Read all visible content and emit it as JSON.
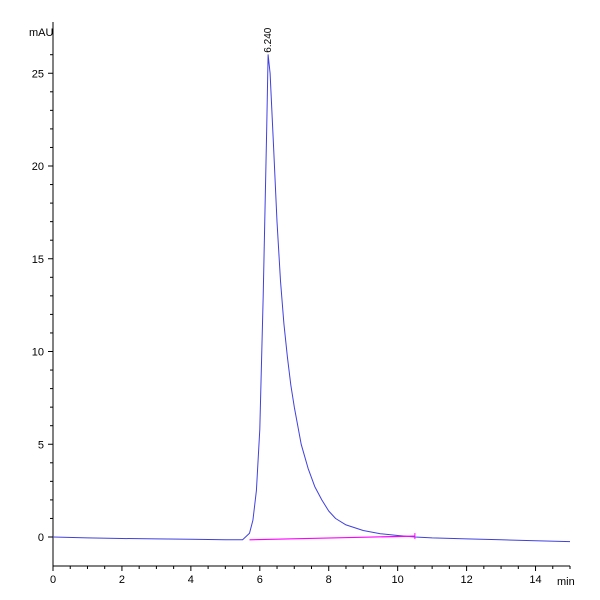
{
  "chart_data": {
    "type": "line",
    "title": "",
    "xlabel": "min",
    "ylabel": "mAU",
    "xlim": [
      0,
      15
    ],
    "ylim": [
      0,
      27
    ],
    "grid": false,
    "x_ticks": [
      "0",
      "2",
      "4",
      "6",
      "8",
      "10",
      "12",
      "14"
    ],
    "y_ticks": [
      "0",
      "5",
      "10",
      "15",
      "20",
      "25"
    ],
    "peak_label": "6.240",
    "colors": {
      "trace": "#4040e0",
      "baseline": "#ff00ff",
      "axis": "#000000"
    },
    "series": [
      {
        "role": "trace",
        "x": [
          0,
          1,
          2,
          3,
          4,
          5,
          5.5,
          5.7,
          5.8,
          5.9,
          6.0,
          6.1,
          6.2,
          6.24,
          6.3,
          6.4,
          6.5,
          6.6,
          6.7,
          6.8,
          6.9,
          7.0,
          7.2,
          7.4,
          7.6,
          7.8,
          8.0,
          8.2,
          8.5,
          9.0,
          9.5,
          10.0,
          10.5,
          11,
          12,
          13,
          14,
          15
        ],
        "y": [
          0.0,
          -0.05,
          -0.08,
          -0.1,
          -0.12,
          -0.15,
          -0.15,
          0.2,
          0.9,
          2.5,
          5.8,
          13.0,
          22.0,
          26.0,
          25.0,
          21.0,
          17.0,
          13.8,
          11.5,
          9.7,
          8.2,
          7.0,
          5.0,
          3.7,
          2.7,
          2.0,
          1.4,
          1.0,
          0.65,
          0.35,
          0.18,
          0.08,
          0.0,
          -0.05,
          -0.1,
          -0.15,
          -0.2,
          -0.25
        ]
      },
      {
        "role": "baseline",
        "x": [
          5.7,
          10.5
        ],
        "y": [
          -0.15,
          0.05
        ]
      }
    ]
  }
}
